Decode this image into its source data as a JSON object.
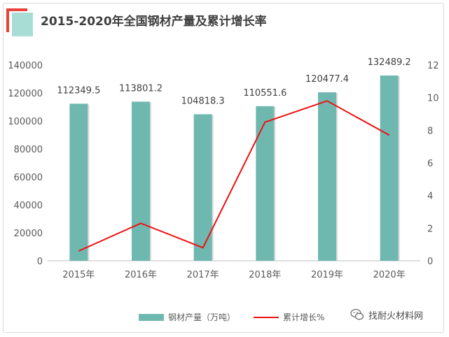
{
  "chart_data": {
    "type": "bar",
    "title": "2015-2020年全国钢材产量及累计增长率",
    "categories": [
      "2015年",
      "2016年",
      "2017年",
      "2018年",
      "2019年",
      "2020年"
    ],
    "series": [
      {
        "name": "钢材产量（万吨）",
        "type": "bar",
        "axis": "left",
        "color": "#6fb8b0",
        "values": [
          112349.5,
          113801.2,
          104818.3,
          110551.6,
          120477.4,
          132489.2
        ],
        "labels": [
          "112349.5",
          "113801.2",
          "104818.3",
          "110551.6",
          "120477.4",
          "132489.2"
        ]
      },
      {
        "name": "累计增长%",
        "type": "line",
        "axis": "right",
        "color": "#ee1111",
        "values": [
          0.6,
          2.3,
          0.8,
          8.5,
          9.8,
          7.7
        ]
      }
    ],
    "y_left": {
      "range": [
        0,
        140000
      ],
      "ticks": [
        "0",
        "20000",
        "40000",
        "60000",
        "80000",
        "100000",
        "120000",
        "140000"
      ]
    },
    "y_right": {
      "range": [
        0,
        12
      ],
      "ticks": [
        "0",
        "2",
        "4",
        "6",
        "8",
        "10",
        "12"
      ]
    },
    "grid": false,
    "legend": "bottom"
  },
  "watermark": {
    "text": "找耐火材料网",
    "icon": "wechat-icon"
  }
}
